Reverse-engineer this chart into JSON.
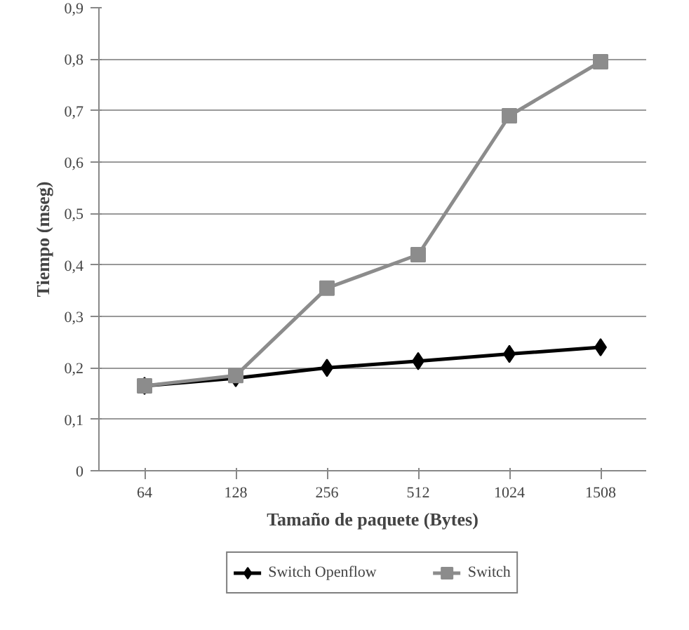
{
  "chart_data": {
    "type": "line",
    "xlabel": "Tamaño de paquete (Bytes)",
    "ylabel": "Tiempo (mseg)",
    "categories": [
      "64",
      "128",
      "256",
      "512",
      "1024",
      "1508"
    ],
    "series": [
      {
        "name": "Switch Openflow",
        "color": "#000000",
        "marker": "diamond",
        "values": [
          0.165,
          0.18,
          0.2,
          0.213,
          0.227,
          0.24
        ]
      },
      {
        "name": "Switch",
        "color": "#8c8c8c",
        "marker": "square",
        "values": [
          0.165,
          0.185,
          0.355,
          0.42,
          0.69,
          0.795
        ]
      }
    ],
    "ylim": [
      0,
      0.9
    ],
    "yticks": [
      {
        "value": 0,
        "label": "0"
      },
      {
        "value": 0.1,
        "label": "0,1"
      },
      {
        "value": 0.2,
        "label": "0,2"
      },
      {
        "value": 0.3,
        "label": "0,3"
      },
      {
        "value": 0.4,
        "label": "0,4"
      },
      {
        "value": 0.5,
        "label": "0,5"
      },
      {
        "value": 0.6,
        "label": "0,6"
      },
      {
        "value": 0.7,
        "label": "0,7"
      },
      {
        "value": 0.8,
        "label": "0,8"
      },
      {
        "value": 0.9,
        "label": "0,9"
      }
    ],
    "grid": "y",
    "legend": "bottom"
  }
}
